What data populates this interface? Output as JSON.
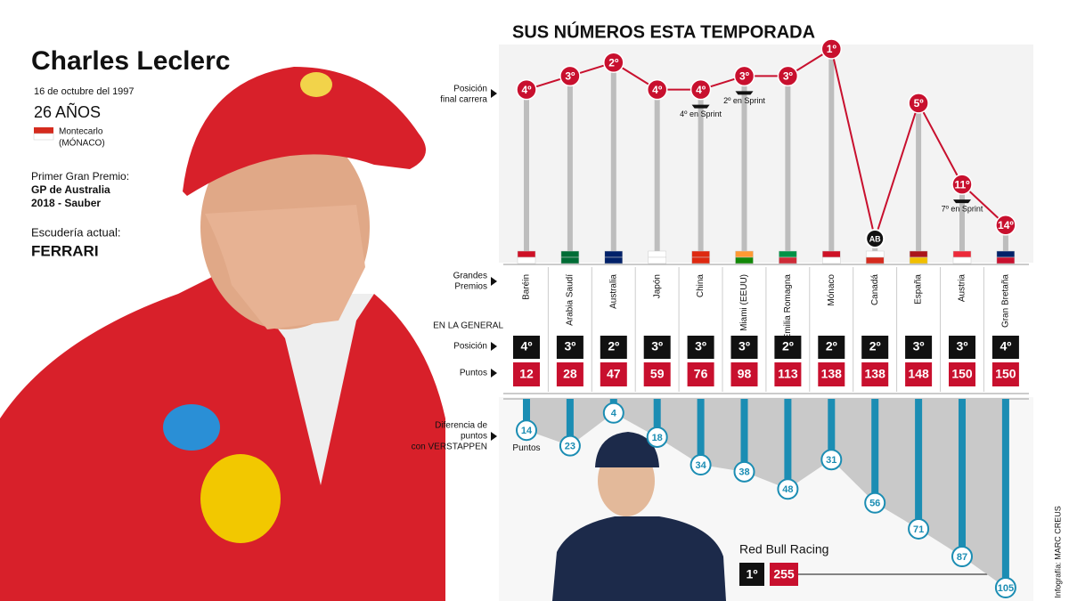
{
  "profile": {
    "name": "Charles Leclerc",
    "birth": "16 de octubre del 1997",
    "age": "26 AÑOS",
    "birthplace": [
      "Montecarlo",
      "(MÓNACO)"
    ],
    "debut_label": "Primer Gran Premio:",
    "debut": [
      "GP de Australia",
      "2018 - Sauber"
    ],
    "team_label": "Escudería actual:",
    "team": "FERRARI"
  },
  "chart_data": [
    {
      "type": "line",
      "title": "SUS NÚMEROS ESTA TEMPORADA",
      "y_label": [
        "Posición",
        "final carrera"
      ],
      "categories": [
        "Baréin",
        "Arabia Saudí",
        "Australia",
        "Japón",
        "China",
        "Miami (EEUU)",
        "Emilia Romagna",
        "Mónaco",
        "Canadá",
        "España",
        "Austria",
        "Gran Bretaña"
      ],
      "values": [
        4,
        3,
        2,
        4,
        4,
        3,
        3,
        1,
        null,
        5,
        11,
        14
      ],
      "value_labels": [
        "4º",
        "3º",
        "2º",
        "4º",
        "4º",
        "3º",
        "3º",
        "1º",
        "AB",
        "5º",
        "11º",
        "14º"
      ],
      "sprint_labels": [
        null,
        null,
        null,
        null,
        "4º en Sprint",
        "2º en Sprint",
        null,
        null,
        null,
        null,
        "7º en Sprint",
        null
      ],
      "ylim": [
        1,
        15
      ],
      "y_inverted": true,
      "color": "#c8102e"
    },
    {
      "type": "bar",
      "y_label": [
        "Diferencia de",
        "puntos",
        "con VERSTAPPEN"
      ],
      "unit_label": "Puntos",
      "values": [
        14,
        23,
        4,
        18,
        34,
        38,
        48,
        31,
        56,
        71,
        87,
        105
      ],
      "ylim": [
        0,
        105
      ],
      "y_inverted": true,
      "color": "#1b8db3"
    }
  ],
  "standings": {
    "gp_label": [
      "Grandes",
      "Premios"
    ],
    "section_label": "EN LA GENERAL",
    "position_label": "Posición",
    "points_label": "Puntos",
    "position_labels": [
      "4º",
      "3º",
      "2º",
      "3º",
      "3º",
      "3º",
      "2º",
      "2º",
      "2º",
      "3º",
      "3º",
      "4º"
    ],
    "points": [
      12,
      28,
      47,
      59,
      76,
      98,
      113,
      138,
      138,
      148,
      150,
      150
    ]
  },
  "leader": {
    "team": "Red Bull Racing",
    "position_label": "1º",
    "points": 255
  },
  "credit": "Infografía: MARC CREUS"
}
